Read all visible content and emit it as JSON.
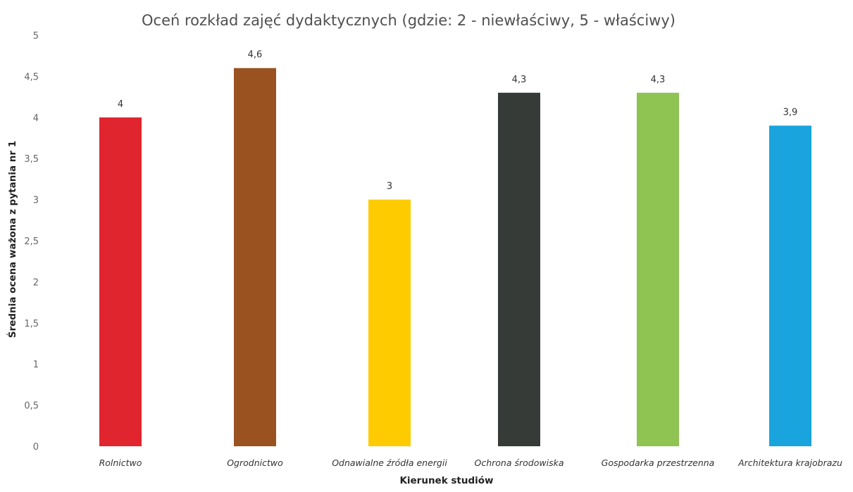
{
  "chart_data": {
    "type": "bar",
    "title": "Oceń rozkład zajęć dydaktycznych (gdzie: 2 - niewłaściwy, 5 - właściwy)",
    "xlabel": "Kierunek studiów",
    "ylabel": "Średnia ocena ważona z pytania nr 1",
    "categories": [
      "Rolnictwo",
      "Ogrodnictwo",
      "Odnawialne źródła energii",
      "Ochrona środowiska",
      "Gospodarka przestrzenna",
      "Architektura krajobrazu"
    ],
    "values": [
      4,
      4.6,
      3,
      4.3,
      4.3,
      3.9
    ],
    "data_labels": [
      "4",
      "4,6",
      "3",
      "4,3",
      "4,3",
      "3,9"
    ],
    "bar_colors": [
      "#e0252f",
      "#9b5221",
      "#fecb00",
      "#363b38",
      "#8fc352",
      "#1aa4dd"
    ],
    "ylim": [
      0,
      5
    ],
    "yticks": [
      "0",
      "0,5",
      "1",
      "1,5",
      "2",
      "2,5",
      "3",
      "3,5",
      "4",
      "4,5",
      "5"
    ],
    "grid": false,
    "legend": "none"
  }
}
